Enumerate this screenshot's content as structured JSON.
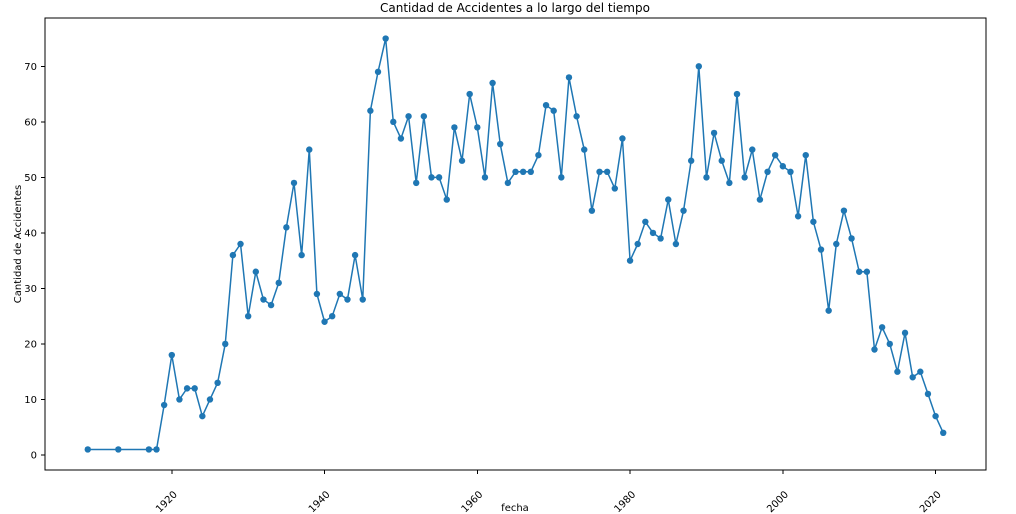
{
  "chart_data": {
    "type": "line",
    "title": "Cantidad de Accidentes a lo largo del tiempo",
    "xlabel": "fecha",
    "ylabel": "Cantidad de Accidentes",
    "xlim": [
      1903.4,
      2026.6
    ],
    "ylim": [
      -2.7,
      78.7
    ],
    "xticks": [
      1920,
      1940,
      1960,
      1980,
      2000,
      2020
    ],
    "xtick_labels": [
      "1920",
      "1940",
      "1960",
      "1980",
      "2000",
      "2020"
    ],
    "yticks": [
      0,
      10,
      20,
      30,
      40,
      50,
      60,
      70
    ],
    "ytick_labels": [
      "0",
      "10",
      "20",
      "30",
      "40",
      "50",
      "60",
      "70"
    ],
    "grid": false,
    "legend": null,
    "series": [
      {
        "color": "#1f77b4",
        "marker": "circle",
        "x": [
          1909,
          1913,
          1917,
          1918,
          1919,
          1920,
          1921,
          1922,
          1923,
          1924,
          1925,
          1926,
          1927,
          1928,
          1929,
          1930,
          1931,
          1932,
          1933,
          1934,
          1935,
          1936,
          1937,
          1938,
          1939,
          1940,
          1941,
          1942,
          1943,
          1944,
          1945,
          1946,
          1947,
          1948,
          1949,
          1950,
          1951,
          1952,
          1953,
          1954,
          1955,
          1956,
          1957,
          1958,
          1959,
          1960,
          1961,
          1962,
          1963,
          1964,
          1965,
          1966,
          1967,
          1968,
          1969,
          1970,
          1971,
          1972,
          1973,
          1974,
          1975,
          1976,
          1977,
          1978,
          1979,
          1980,
          1981,
          1982,
          1983,
          1984,
          1985,
          1986,
          1987,
          1988,
          1989,
          1990,
          1991,
          1992,
          1993,
          1994,
          1995,
          1996,
          1997,
          1998,
          1999,
          2000,
          2001,
          2002,
          2003,
          2004,
          2005,
          2006,
          2007,
          2008,
          2009,
          2010,
          2011,
          2012,
          2013,
          2014,
          2015,
          2016,
          2017,
          2018,
          2019,
          2020,
          2021
        ],
        "y": [
          1,
          1,
          1,
          1,
          9,
          18,
          10,
          12,
          12,
          7,
          10,
          13,
          20,
          36,
          38,
          25,
          33,
          28,
          27,
          31,
          41,
          49,
          36,
          55,
          29,
          24,
          25,
          29,
          28,
          36,
          28,
          62,
          69,
          75,
          60,
          57,
          61,
          49,
          61,
          50,
          50,
          46,
          59,
          53,
          65,
          59,
          50,
          67,
          56,
          49,
          51,
          51,
          51,
          54,
          63,
          62,
          50,
          68,
          61,
          55,
          44,
          51,
          51,
          48,
          57,
          35,
          38,
          42,
          40,
          39,
          46,
          38,
          44,
          53,
          70,
          50,
          58,
          53,
          49,
          65,
          50,
          55,
          46,
          51,
          54,
          52,
          51,
          43,
          54,
          42,
          37,
          26,
          38,
          44,
          39,
          33,
          33,
          19,
          23,
          20,
          15,
          22,
          14,
          15,
          11,
          7,
          4
        ]
      }
    ]
  }
}
